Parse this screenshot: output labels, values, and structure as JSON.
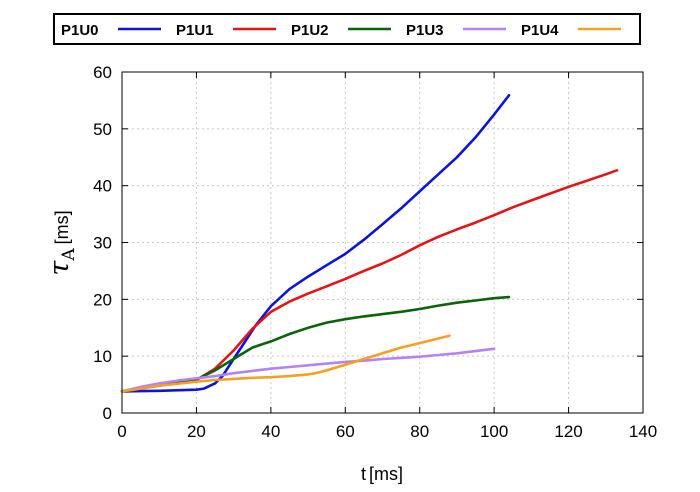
{
  "chart_data": {
    "type": "line",
    "title": "",
    "xlabel": "t",
    "xlabel_unit": "[ms]",
    "ylabel_symbol": "τ",
    "ylabel_subscript": "A",
    "ylabel_unit": "[ms]",
    "xlim": [
      0,
      140
    ],
    "ylim": [
      0,
      60
    ],
    "xticks": [
      0,
      20,
      40,
      60,
      80,
      100,
      120,
      140
    ],
    "yticks": [
      0,
      10,
      20,
      30,
      40,
      50,
      60
    ],
    "grid": true,
    "legend_position": "top",
    "series": [
      {
        "name": "P1U0",
        "color": "#0a14dc",
        "x": [
          0,
          10,
          20,
          22,
          25,
          27,
          30,
          33,
          36,
          40,
          45,
          50,
          55,
          60,
          65,
          70,
          75,
          80,
          85,
          90,
          95,
          100,
          104
        ],
        "y": [
          3.8,
          3.9,
          4.1,
          4.3,
          5.2,
          6.5,
          9.5,
          12.5,
          15.5,
          18.8,
          21.8,
          24.0,
          26.0,
          28.0,
          30.5,
          33.2,
          36.0,
          39.0,
          42.0,
          45.0,
          48.5,
          52.5,
          55.9
        ]
      },
      {
        "name": "P1U1",
        "color": "#e61414",
        "x": [
          0,
          10,
          20,
          25,
          30,
          35,
          40,
          45,
          50,
          55,
          60,
          65,
          70,
          75,
          80,
          85,
          90,
          95,
          100,
          105,
          110,
          115,
          120,
          125,
          130,
          133
        ],
        "y": [
          3.8,
          4.8,
          5.8,
          7.8,
          11.0,
          14.8,
          17.8,
          19.6,
          21.0,
          22.3,
          23.6,
          25.0,
          26.3,
          27.8,
          29.5,
          31.0,
          32.3,
          33.5,
          34.8,
          36.2,
          37.4,
          38.6,
          39.8,
          40.9,
          42.0,
          42.7
        ]
      },
      {
        "name": "P1U2",
        "color": "#0a640a",
        "x": [
          0,
          10,
          20,
          25,
          30,
          35,
          40,
          45,
          50,
          55,
          60,
          65,
          70,
          75,
          80,
          85,
          90,
          95,
          100,
          104
        ],
        "y": [
          3.8,
          4.9,
          5.9,
          7.5,
          9.5,
          11.5,
          12.6,
          13.9,
          15.0,
          15.9,
          16.5,
          17.0,
          17.4,
          17.8,
          18.3,
          18.9,
          19.4,
          19.8,
          20.2,
          20.4
        ]
      },
      {
        "name": "P1U3",
        "color": "#b482f5",
        "x": [
          0,
          5,
          10,
          15,
          20,
          25,
          30,
          35,
          40,
          45,
          50,
          55,
          60,
          65,
          70,
          75,
          80,
          85,
          90,
          95,
          100
        ],
        "y": [
          3.8,
          4.6,
          5.2,
          5.7,
          6.1,
          6.5,
          7.0,
          7.4,
          7.8,
          8.1,
          8.4,
          8.7,
          9.0,
          9.2,
          9.5,
          9.7,
          9.9,
          10.2,
          10.5,
          10.9,
          11.3
        ]
      },
      {
        "name": "P1U4",
        "color": "#f5a01e",
        "x": [
          0,
          10,
          20,
          25,
          30,
          35,
          40,
          45,
          50,
          52,
          55,
          60,
          65,
          70,
          75,
          80,
          85,
          88
        ],
        "y": [
          3.8,
          4.8,
          5.5,
          5.8,
          6.0,
          6.2,
          6.3,
          6.5,
          6.8,
          7.0,
          7.5,
          8.5,
          9.5,
          10.5,
          11.5,
          12.3,
          13.1,
          13.6
        ]
      }
    ]
  }
}
